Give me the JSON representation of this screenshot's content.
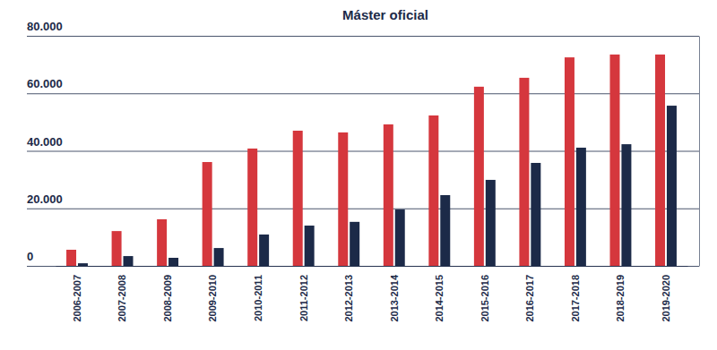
{
  "chart_data": {
    "type": "bar",
    "title": "Máster oficial",
    "categories": [
      "2006-2007",
      "2007-2008",
      "2008-2009",
      "2009-2010",
      "2010-2011",
      "2011-2012",
      "2012-2013",
      "2013-2014",
      "2014-2015",
      "2015-2016",
      "2016-2017",
      "2017-2018",
      "2018-2019",
      "2019-2020"
    ],
    "series": [
      {
        "color": "#d5373d",
        "values": [
          5600,
          12100,
          16200,
          36100,
          40800,
          47000,
          46400,
          49200,
          52300,
          62300,
          65400,
          72500,
          73500,
          73500
        ]
      },
      {
        "color": "#1c2a48",
        "values": [
          900,
          3400,
          2800,
          6200,
          10900,
          14000,
          15300,
          19600,
          24600,
          29900,
          35800,
          41100,
          42300,
          55700
        ]
      }
    ],
    "ylim": [
      0,
      80000
    ],
    "yticks": [
      0,
      {
        "value": 20000,
        "label": "20.000"
      },
      {
        "value": 40000,
        "label": "40.000"
      },
      {
        "value": 60000,
        "label": "60.000"
      },
      {
        "value": 80000,
        "label": "80.000"
      }
    ],
    "grid": true
  }
}
